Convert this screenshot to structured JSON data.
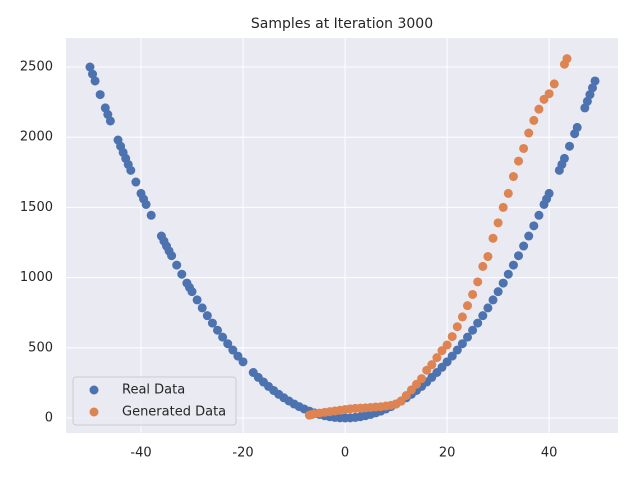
{
  "chart_data": {
    "type": "scatter",
    "title": "Samples at Iteration 3000",
    "xlim": [
      -54.7,
      53.5
    ],
    "ylim": [
      -107,
      2707
    ],
    "xticks": [
      -40,
      -20,
      0,
      20,
      40
    ],
    "yticks": [
      0,
      500,
      1000,
      1500,
      2000,
      2500
    ],
    "grid": true,
    "legend": "lower left",
    "series": [
      {
        "name": "Real Data",
        "color": "#4c72b0",
        "x": [
          -50,
          -49.5,
          -49,
          -48,
          -47,
          -46.5,
          -46,
          -44.5,
          -44,
          -43.5,
          -43,
          -42.5,
          -42,
          -41,
          -40,
          -39.5,
          -39,
          -38,
          -36,
          -35.5,
          -35,
          -34.5,
          -34,
          -33,
          -32,
          -31,
          -30.5,
          -30,
          -29,
          -28,
          -27,
          -26,
          -25,
          -24,
          -23,
          -22,
          -21,
          -20,
          -18,
          -17,
          -16,
          -15,
          -14,
          -13,
          -12,
          -11,
          -10,
          -9,
          -8,
          -7,
          -6,
          -5,
          -4,
          -3,
          -2,
          -1,
          0,
          1,
          2,
          3,
          4,
          5,
          6,
          7,
          8,
          9,
          10,
          11,
          12,
          13,
          14,
          15,
          16,
          17,
          18,
          19,
          20,
          21,
          22,
          23,
          24,
          25,
          26,
          27,
          28,
          29,
          30,
          31,
          32,
          33,
          34,
          35,
          36,
          37,
          38,
          39,
          39.5,
          40,
          42,
          42.5,
          43,
          44,
          45,
          45.5,
          47,
          47.5,
          48,
          48.5,
          49
        ],
        "values": [
          2500,
          2450,
          2401,
          2304,
          2209,
          2162,
          2116,
          1980,
          1936,
          1892,
          1849,
          1806,
          1764,
          1681,
          1600,
          1560,
          1521,
          1444,
          1296,
          1260,
          1225,
          1190,
          1156,
          1089,
          1024,
          961,
          930,
          900,
          841,
          784,
          729,
          676,
          625,
          576,
          529,
          484,
          441,
          400,
          324,
          289,
          256,
          225,
          196,
          169,
          144,
          121,
          100,
          81,
          64,
          49,
          36,
          25,
          16,
          9,
          4,
          1,
          0,
          1,
          4,
          9,
          16,
          25,
          36,
          49,
          64,
          81,
          100,
          121,
          144,
          169,
          196,
          225,
          256,
          289,
          324,
          361,
          400,
          441,
          484,
          529,
          576,
          625,
          676,
          729,
          784,
          841,
          900,
          961,
          1024,
          1089,
          1156,
          1225,
          1296,
          1369,
          1444,
          1521,
          1560,
          1600,
          1764,
          1806,
          1849,
          1936,
          2025,
          2070,
          2209,
          2256,
          2304,
          2352,
          2401
        ]
      },
      {
        "name": "Generated Data",
        "color": "#dd8452",
        "x": [
          -7,
          -6.5,
          -6,
          -5,
          -4,
          -3,
          -2,
          -1,
          0,
          1,
          2,
          3,
          4,
          5,
          6,
          7,
          8,
          9,
          10,
          11,
          12,
          13,
          14,
          15,
          16,
          17,
          18,
          19,
          20,
          21,
          22,
          23,
          24,
          25,
          26,
          27,
          28,
          29,
          30,
          31,
          32,
          33,
          34,
          35,
          36,
          37,
          38,
          39,
          40,
          41,
          43,
          43.5
        ],
        "values": [
          20,
          25,
          30,
          35,
          40,
          45,
          50,
          55,
          60,
          65,
          68,
          70,
          72,
          75,
          78,
          80,
          85,
          90,
          100,
          120,
          160,
          200,
          240,
          280,
          340,
          380,
          430,
          480,
          520,
          580,
          650,
          720,
          800,
          880,
          970,
          1080,
          1150,
          1280,
          1390,
          1500,
          1600,
          1720,
          1830,
          1920,
          2030,
          2120,
          2200,
          2270,
          2310,
          2380,
          2520,
          2560
        ]
      }
    ]
  }
}
